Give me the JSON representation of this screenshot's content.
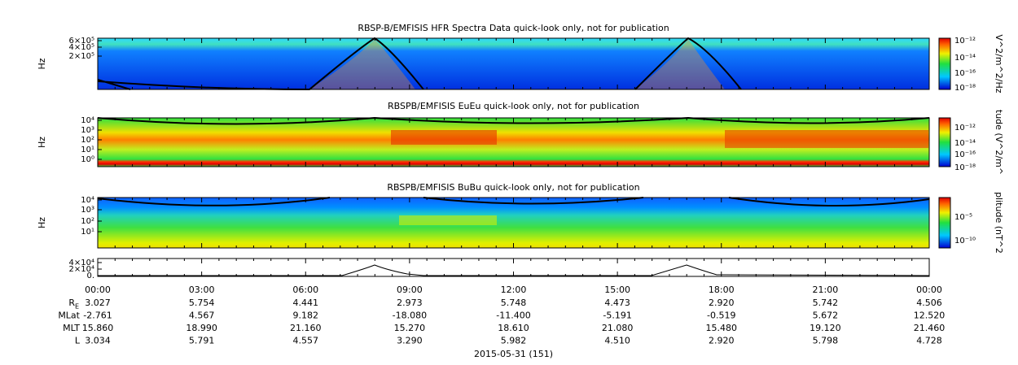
{
  "panels": [
    {
      "title": "RBSP-B/EMFISIS  HFR Spectra Data quick-look only, not for publication",
      "ylabel": "Hz",
      "yticks": [
        "6×10⁵",
        "4×10⁵",
        "2×10⁵"
      ],
      "colorbar": {
        "label": "V^2/m^2/Hz",
        "ticks": [
          "10⁻¹²",
          "10⁻¹⁴",
          "10⁻¹⁶",
          "10⁻¹⁸"
        ]
      }
    },
    {
      "title": "RBSPB/EMFISIS  EuEu quick-look only, not for publication",
      "ylabel": "Hz",
      "yticks": [
        "10⁴",
        "10³",
        "10²",
        "10¹",
        "10⁰"
      ],
      "colorbar": {
        "label": "tude (V^2/m^",
        "ticks": [
          "10⁻¹²",
          "10⁻¹⁴",
          "10⁻¹⁶",
          "10⁻¹⁸"
        ]
      }
    },
    {
      "title": "RBSPB/EMFISIS  BuBu quick-look only, not for publication",
      "ylabel": "Hz",
      "yticks": [
        "10⁴",
        "10³",
        "10²",
        "10¹"
      ],
      "colorbar": {
        "label": "plitude (nT^2",
        "ticks": [
          "10⁻⁵",
          "10⁻¹⁰"
        ]
      }
    },
    {
      "yticks": [
        "4×10⁴",
        "2×10⁴",
        "0."
      ]
    }
  ],
  "xticks": [
    "00:00",
    "03:00",
    "06:00",
    "09:00",
    "12:00",
    "15:00",
    "18:00",
    "21:00",
    "00:00"
  ],
  "ephemeris": [
    {
      "label": "R",
      "subscript": "E",
      "values": [
        "3.027",
        "5.754",
        "4.441",
        "2.973",
        "5.748",
        "4.473",
        "2.920",
        "5.742",
        "4.506"
      ]
    },
    {
      "label": "MLat",
      "values": [
        "-2.761",
        "4.567",
        "9.182",
        "-18.080",
        "-11.400",
        "-5.191",
        "-0.519",
        "5.672",
        "12.520"
      ]
    },
    {
      "label": "MLT",
      "values": [
        "15.860",
        "18.990",
        "21.160",
        "15.270",
        "18.610",
        "21.080",
        "15.480",
        "19.120",
        "21.460"
      ]
    },
    {
      "label": "L",
      "values": [
        "3.034",
        "5.791",
        "4.557",
        "3.290",
        "5.982",
        "4.510",
        "2.920",
        "5.798",
        "4.728"
      ]
    }
  ],
  "date": "2015-05-31 (151)"
}
